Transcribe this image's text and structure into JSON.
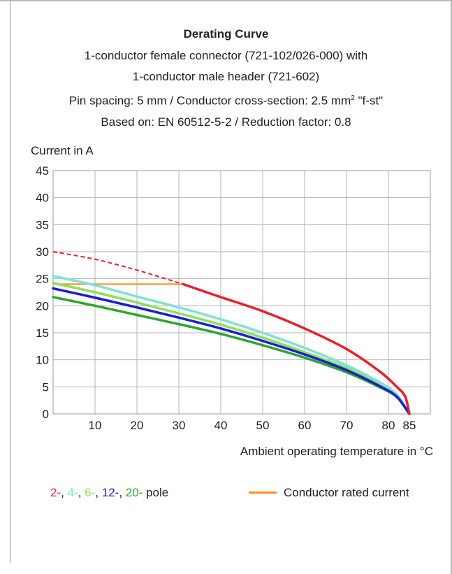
{
  "header": {
    "title": "Derating Curve",
    "line1": "1-conductor female connector (721-102/026-000) with",
    "line2": "1-conductor male header (721-602)",
    "line3_pre": "Pin spacing: 5 mm / Conductor cross-section: 2.5 mm",
    "line3_sup": "2",
    "line3_post": " \"f-st\"",
    "line4": "Based on: EN 60512-5-2 / Reduction factor: 0.8"
  },
  "chart_data": {
    "type": "line",
    "title": "Derating Curve",
    "ylabel": "Current in A",
    "xlabel": "Ambient operating temperature in °C",
    "xlim": [
      0,
      90
    ],
    "ylim": [
      0,
      45
    ],
    "x_ticks": [
      "10",
      "20",
      "30",
      "40",
      "50",
      "60",
      "70",
      "80",
      "85"
    ],
    "x_tick_values": [
      10,
      20,
      30,
      40,
      50,
      60,
      70,
      80,
      85
    ],
    "y_ticks": [
      "0",
      "5",
      "10",
      "15",
      "20",
      "25",
      "30",
      "35",
      "40",
      "45"
    ],
    "y_tick_values": [
      0,
      5,
      10,
      15,
      20,
      25,
      30,
      35,
      40,
      45
    ],
    "grid": true,
    "series": [
      {
        "name": "2-",
        "color": "#e8202a",
        "dashed_segment": [
          [
            0,
            30
          ],
          [
            10,
            28.6
          ],
          [
            20,
            26.6
          ],
          [
            31,
            24.0
          ]
        ],
        "points": [
          [
            31,
            24.0
          ],
          [
            40,
            21.6
          ],
          [
            50,
            19.0
          ],
          [
            60,
            15.8
          ],
          [
            70,
            12.0
          ],
          [
            78,
            7.8
          ],
          [
            82,
            5.0
          ],
          [
            84,
            3.2
          ],
          [
            85,
            0
          ]
        ]
      },
      {
        "name": "4-",
        "color": "#7fe3d4",
        "points": [
          [
            0,
            25.5
          ],
          [
            10,
            23.8
          ],
          [
            20,
            21.7
          ],
          [
            30,
            19.7
          ],
          [
            40,
            17.5
          ],
          [
            50,
            15.0
          ],
          [
            60,
            12.2
          ],
          [
            70,
            9.0
          ],
          [
            78,
            5.8
          ],
          [
            82,
            3.6
          ],
          [
            85,
            0
          ]
        ]
      },
      {
        "name": "6-",
        "color": "#8ee05a",
        "points": [
          [
            0,
            24.2
          ],
          [
            10,
            22.5
          ],
          [
            20,
            20.6
          ],
          [
            30,
            18.6
          ],
          [
            40,
            16.5
          ],
          [
            50,
            14.1
          ],
          [
            60,
            11.4
          ],
          [
            70,
            8.5
          ],
          [
            78,
            5.4
          ],
          [
            82,
            3.4
          ],
          [
            85,
            0
          ]
        ]
      },
      {
        "name": "12-",
        "color": "#1c1cd8",
        "points": [
          [
            0,
            23.2
          ],
          [
            10,
            21.5
          ],
          [
            20,
            19.7
          ],
          [
            30,
            17.8
          ],
          [
            40,
            15.8
          ],
          [
            50,
            13.5
          ],
          [
            60,
            11.0
          ],
          [
            70,
            8.1
          ],
          [
            78,
            5.1
          ],
          [
            82,
            3.2
          ],
          [
            85,
            0
          ]
        ]
      },
      {
        "name": "20-",
        "color": "#2fa52f",
        "points": [
          [
            0,
            21.6
          ],
          [
            10,
            20.0
          ],
          [
            20,
            18.3
          ],
          [
            30,
            16.6
          ],
          [
            40,
            14.8
          ],
          [
            50,
            12.7
          ],
          [
            60,
            10.4
          ],
          [
            70,
            7.7
          ],
          [
            78,
            4.9
          ],
          [
            82,
            3.1
          ],
          [
            85,
            0
          ]
        ]
      },
      {
        "name": "Conductor rated current",
        "color": "#ff8c1a",
        "points": [
          [
            0,
            24.0
          ],
          [
            31,
            24.0
          ]
        ]
      }
    ]
  },
  "legend": {
    "poles": [
      {
        "text": "2-",
        "color": "#e8202a"
      },
      {
        "text": ", ",
        "color": "#222222"
      },
      {
        "text": "4-",
        "color": "#7fe3d4"
      },
      {
        "text": ", ",
        "color": "#222222"
      },
      {
        "text": "6-",
        "color": "#8ee05a"
      },
      {
        "text": ", ",
        "color": "#222222"
      },
      {
        "text": "12-",
        "color": "#1c1cd8"
      },
      {
        "text": ", ",
        "color": "#222222"
      },
      {
        "text": "20-",
        "color": "#2fa52f"
      },
      {
        "text": " pole",
        "color": "#222222"
      }
    ],
    "rated_label": "Conductor rated current",
    "rated_color": "#ff8c1a"
  }
}
